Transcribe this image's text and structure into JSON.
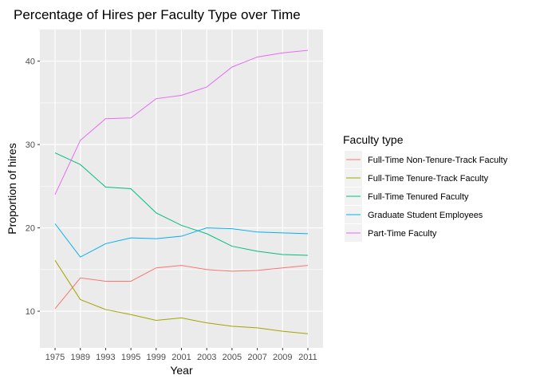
{
  "chart_data": {
    "type": "line",
    "title": "Percentage of Hires per Faculty Type over Time",
    "xlabel": "Year",
    "ylabel": "Proportion of hires",
    "legend_title": "Faculty type",
    "legend_position": "right",
    "grid": true,
    "background": "#ebebeb",
    "categories": [
      "1975",
      "1989",
      "1993",
      "1995",
      "1999",
      "2001",
      "2003",
      "2005",
      "2007",
      "2009",
      "2011"
    ],
    "y_ticks": [
      10,
      20,
      30,
      40
    ],
    "ylim": [
      5.6,
      43.8
    ],
    "series": [
      {
        "name": "Full-Time Non-Tenure-Track Faculty",
        "color": "#F8766D",
        "values": [
          10.3,
          14.0,
          13.6,
          13.6,
          15.2,
          15.5,
          15.0,
          14.8,
          14.9,
          15.2,
          15.5
        ]
      },
      {
        "name": "Full-Time Tenure-Track Faculty",
        "color": "#A3A500",
        "values": [
          16.1,
          11.4,
          10.2,
          9.6,
          8.9,
          9.2,
          8.6,
          8.2,
          8.0,
          7.6,
          7.3
        ]
      },
      {
        "name": "Full-Time Tenured Faculty",
        "color": "#00BF7D",
        "values": [
          29.0,
          27.6,
          24.9,
          24.7,
          21.8,
          20.3,
          19.3,
          17.8,
          17.2,
          16.8,
          16.7
        ]
      },
      {
        "name": "Graduate Student Employees",
        "color": "#00B0F6",
        "values": [
          20.5,
          16.5,
          18.1,
          18.8,
          18.7,
          19.0,
          20.0,
          19.9,
          19.5,
          19.4,
          19.3
        ]
      },
      {
        "name": "Part-Time Faculty",
        "color": "#E76BF3",
        "values": [
          24.0,
          30.5,
          33.1,
          33.2,
          35.5,
          35.9,
          36.9,
          39.3,
          40.5,
          41.0,
          41.3
        ]
      }
    ]
  }
}
